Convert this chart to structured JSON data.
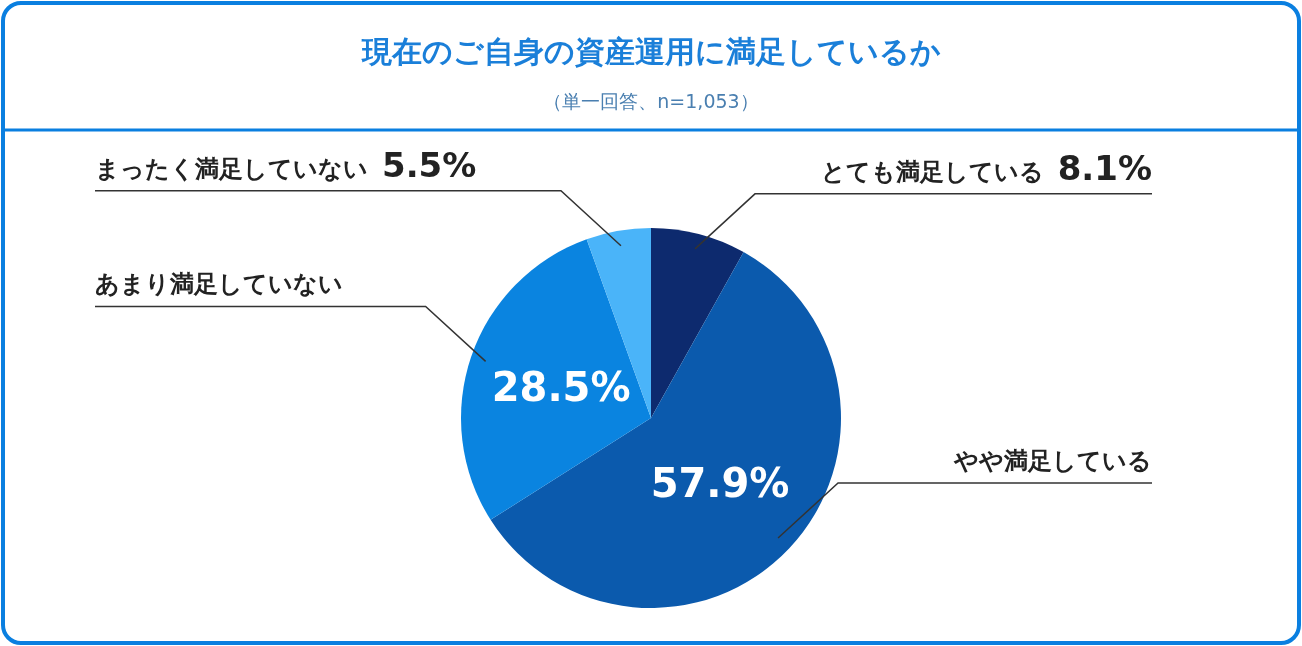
{
  "chart_data": {
    "type": "pie",
    "title": "現在のご自身の資産運用に満足しているか",
    "subtitle": "（単一回答、n=1,053）",
    "categories": [
      "とても満足している",
      "やや満足している",
      "あまり満足していない",
      "まったく満足していない"
    ],
    "values": [
      8.1,
      57.9,
      28.5,
      5.5
    ],
    "colors": [
      "#0d2a6e",
      "#0b5aad",
      "#0a84e0",
      "#4ab4f9"
    ],
    "value_labels": [
      "8.1%",
      "57.9%",
      "28.5%",
      "5.5%"
    ]
  }
}
